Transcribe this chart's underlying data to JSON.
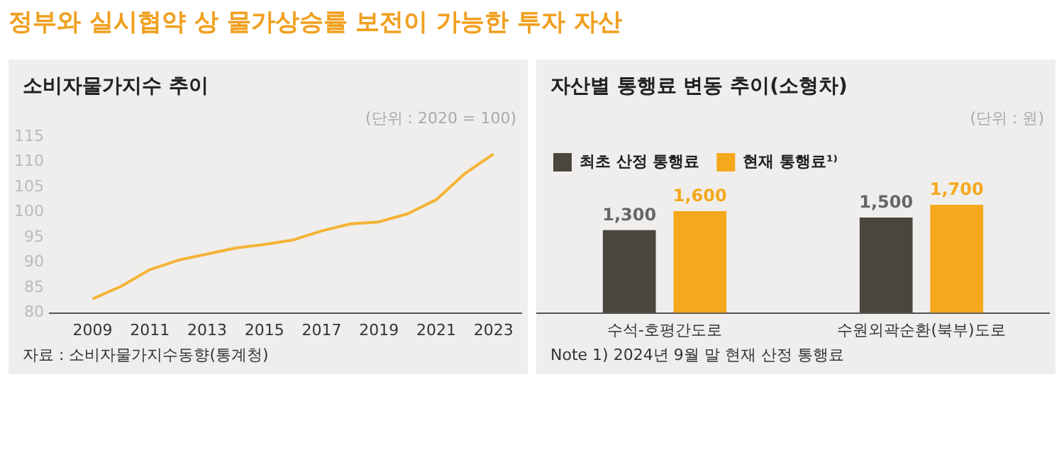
{
  "chart_data": [
    {
      "type": "line",
      "title": "소비자물가지수 추이",
      "annotations": [
        "정부와 실시협약 상 물가상승률 보전이 가능한 투자 자산",
        "(단위 : 2020 = 100)",
        "자료 : 소비자물가지수동향(통계청)"
      ],
      "x": [
        2009,
        2010,
        2011,
        2012,
        2013,
        2014,
        2015,
        2016,
        2017,
        2018,
        2019,
        2020,
        2021,
        2022,
        2023
      ],
      "series": [
        {
          "color": "#f5b335",
          "values": [
            82.8,
            85.3,
            88.6,
            90.5,
            91.7,
            92.9,
            93.6,
            94.5,
            96.3,
            97.7,
            98.1,
            99.7,
            102.5,
            107.7,
            111.6
          ]
        }
      ],
      "xlim": [
        2007.5,
        2024
      ],
      "xticks": [
        2009,
        2011,
        2013,
        2015,
        2017,
        2019,
        2021,
        2023
      ],
      "ylim": [
        80,
        115
      ],
      "yticks": [
        80,
        85,
        90,
        95,
        100,
        105,
        110,
        115
      ],
      "grid": false,
      "legend": false,
      "marker": "none",
      "line_style": "solid"
    },
    {
      "type": "bar",
      "title": "자산별 통행료 변동 추이(소형차)",
      "annotations": [
        "(단위 : 원)",
        "Note 1) 2024년 9월 말 현재 산정 통행료"
      ],
      "categories": [
        "수석-호평간도로",
        "수원외곽순환(북부)도로"
      ],
      "series": [
        {
          "name": "최초 산정 통행료",
          "color": "#4a463e",
          "values": [
            1300,
            1500
          ],
          "value_labels": [
            "1,300",
            "1,500"
          ]
        },
        {
          "name": "현재 통행료¹⁾",
          "color": "#f5a81c",
          "values": [
            1600,
            1700
          ],
          "value_labels": [
            "1,600",
            "1,700"
          ]
        }
      ],
      "legend": "top left"
    }
  ]
}
